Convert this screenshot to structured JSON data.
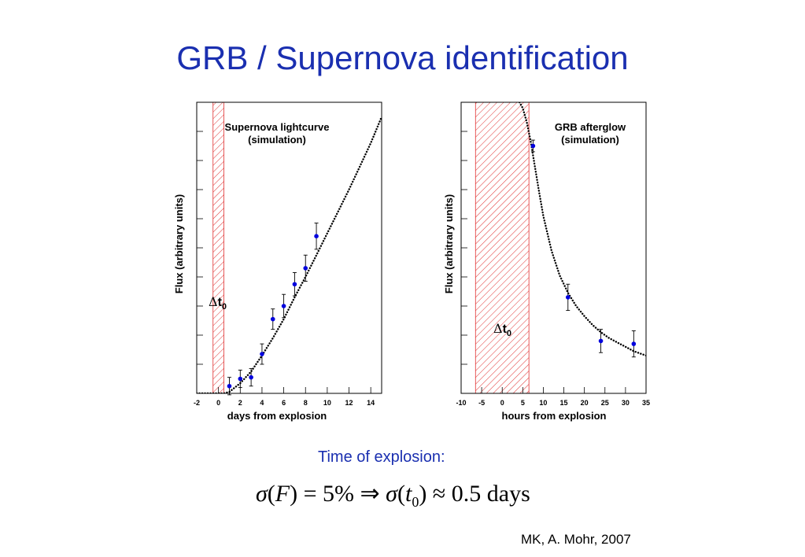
{
  "slide": {
    "title": "GRB / Supernova identification",
    "time_label": "Time of explosion:",
    "formula": {
      "sigma": "σ",
      "open": "(",
      "F": "F",
      "close_eq": ") = 5% ⇒ ",
      "sigma2": "σ",
      "open2": "(",
      "t": "t",
      "sub": "0",
      "tail": ") ≈ 0.5 days"
    },
    "credit": "MK, A. Mohr, 2007"
  },
  "colors": {
    "title": "#1a2fb0",
    "points": "#0000dd",
    "hatch": "#e03030",
    "curve": "#000000"
  },
  "chart_data": [
    {
      "type": "scatter",
      "title": "Supernova lightcurve",
      "subtitle": "(simulation)",
      "xlabel": "days from explosion",
      "ylabel": "Flux (arbitrary units)",
      "xlim": [
        -2,
        15
      ],
      "ylim": [
        0,
        10
      ],
      "x_ticks": [
        -2,
        0,
        2,
        4,
        6,
        8,
        10,
        12,
        14
      ],
      "x_tick_labels": [
        "-2",
        "0",
        "2",
        "4",
        "6",
        "8",
        "10",
        "12",
        "14"
      ],
      "y_tick_labels_shown": false,
      "grid": false,
      "legend": "none",
      "shaded_band": {
        "x_range": [
          -0.5,
          0.5
        ],
        "label_delta": "Δ",
        "label_t": "t",
        "label_sub": "0"
      },
      "points": [
        {
          "x": 1,
          "y": 0.25,
          "err": 0.3
        },
        {
          "x": 2,
          "y": 0.5,
          "err": 0.3
        },
        {
          "x": 3,
          "y": 0.55,
          "err": 0.3
        },
        {
          "x": 4,
          "y": 1.35,
          "err": 0.35
        },
        {
          "x": 5,
          "y": 2.55,
          "err": 0.35
        },
        {
          "x": 6,
          "y": 3.0,
          "err": 0.4
        },
        {
          "x": 7,
          "y": 3.75,
          "err": 0.4
        },
        {
          "x": 8,
          "y": 4.3,
          "err": 0.45
        },
        {
          "x": 9,
          "y": 5.4,
          "err": 0.45
        }
      ],
      "model_curve": {
        "style": "dotted",
        "x": [
          -2,
          -1,
          0,
          0.5,
          1,
          2,
          3,
          4,
          5,
          6,
          7,
          8,
          9,
          10,
          11,
          12,
          13,
          14,
          15
        ],
        "y": [
          0,
          0,
          0,
          0,
          0.05,
          0.35,
          0.75,
          1.3,
          1.9,
          2.55,
          3.3,
          4.0,
          4.75,
          5.5,
          6.25,
          7.0,
          7.8,
          8.6,
          9.5
        ]
      }
    },
    {
      "type": "scatter",
      "title": "GRB afterglow",
      "subtitle": "(simulation)",
      "xlabel": "hours from explosion",
      "ylabel": "Flux (arbitrary units)",
      "xlim": [
        -10,
        35
      ],
      "ylim": [
        0,
        10
      ],
      "x_ticks": [
        -10,
        -5,
        0,
        5,
        10,
        15,
        20,
        25,
        30,
        35
      ],
      "x_tick_labels": [
        "-10",
        "-5",
        "0",
        "5",
        "10",
        "15",
        "20",
        "25",
        "30",
        "35"
      ],
      "y_tick_labels_shown": false,
      "grid": false,
      "legend": "none",
      "shaded_band": {
        "x_range": [
          -6.5,
          6.5
        ],
        "label_delta": "Δ",
        "label_t": "t",
        "label_sub": "0"
      },
      "points": [
        {
          "x": 7.5,
          "y": 8.5,
          "err": 0.2
        },
        {
          "x": 16,
          "y": 3.3,
          "err": 0.45
        },
        {
          "x": 24,
          "y": 1.8,
          "err": 0.4
        },
        {
          "x": 32,
          "y": 1.7,
          "err": 0.45
        }
      ],
      "model_curve": {
        "style": "dotted",
        "x": [
          4.2,
          5,
          6,
          7,
          8,
          9,
          10,
          12,
          14,
          16,
          18,
          20,
          22,
          24,
          26,
          28,
          30,
          32,
          34,
          35
        ],
        "y": [
          10,
          9.8,
          9.3,
          8.6,
          7.75,
          6.9,
          6.1,
          4.9,
          4.05,
          3.45,
          3.0,
          2.65,
          2.35,
          2.1,
          1.9,
          1.75,
          1.6,
          1.45,
          1.35,
          1.3
        ]
      }
    }
  ]
}
